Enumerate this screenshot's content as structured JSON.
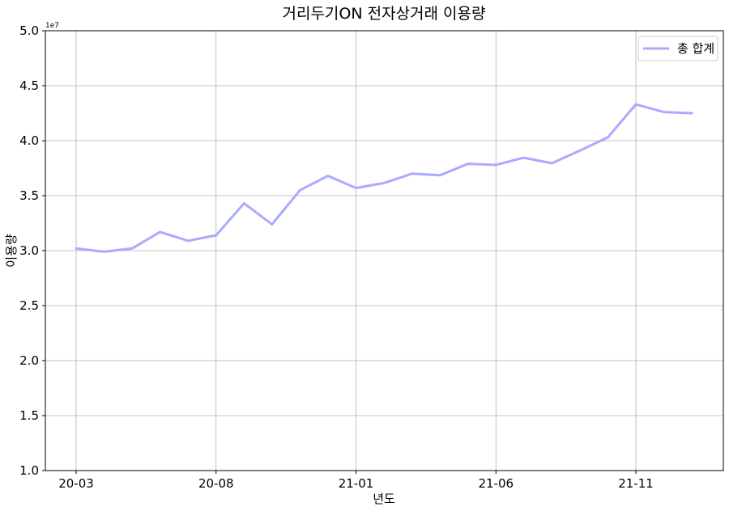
{
  "chart_data": {
    "type": "line",
    "title": "거리두기ON 전자상거래 이용량",
    "xlabel": "년도",
    "ylabel": "이용량",
    "y_offset_label": "1e7",
    "ylim": [
      1.0,
      5.0
    ],
    "y_ticks": [
      "1.0",
      "1.5",
      "2.0",
      "2.5",
      "3.0",
      "3.5",
      "4.0",
      "4.5",
      "5.0"
    ],
    "x_tick_labels": [
      "20-03",
      "20-08",
      "21-01",
      "21-06",
      "21-11"
    ],
    "x_tick_indices": [
      0,
      5,
      10,
      15,
      20
    ],
    "grid": true,
    "legend_position": "top-right",
    "series": [
      {
        "name": "총 합계",
        "color": "#aaaaff",
        "x": [
          "20-03",
          "20-04",
          "20-05",
          "20-06",
          "20-07",
          "20-08",
          "20-09",
          "20-10",
          "20-11",
          "20-12",
          "21-01",
          "21-02",
          "21-03",
          "21-04",
          "21-05",
          "21-06",
          "21-07",
          "21-08",
          "21-09",
          "21-10",
          "21-11",
          "21-12",
          "22-01"
        ],
        "values": [
          3.02,
          2.99,
          3.02,
          3.17,
          3.09,
          3.14,
          3.43,
          3.24,
          3.55,
          3.68,
          3.57,
          3.615,
          3.7,
          3.685,
          3.79,
          3.78,
          3.845,
          3.795,
          3.91,
          4.03,
          4.33,
          4.26,
          4.25
        ]
      }
    ]
  }
}
